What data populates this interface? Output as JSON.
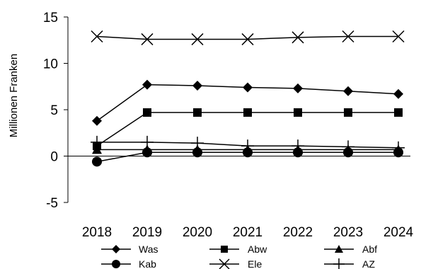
{
  "chart_data": {
    "type": "line",
    "title": "",
    "xlabel": "",
    "ylabel": "Millionen Franken",
    "ylim": [
      -5,
      15
    ],
    "yticks": [
      15,
      10,
      5,
      0,
      -5
    ],
    "categories": [
      "2018",
      "2019",
      "2020",
      "2021",
      "2022",
      "2023",
      "2024"
    ],
    "grid": false,
    "legend_position": "bottom",
    "series": [
      {
        "name": "Was",
        "marker": "diamond",
        "color": "#000000",
        "values": [
          3.8,
          7.7,
          7.6,
          7.4,
          7.3,
          7.0,
          6.7
        ]
      },
      {
        "name": "Abw",
        "marker": "square",
        "color": "#000000",
        "values": [
          1.1,
          4.7,
          4.7,
          4.7,
          4.7,
          4.7,
          4.7
        ]
      },
      {
        "name": "Abf",
        "marker": "triangle",
        "color": "#000000",
        "values": [
          0.7,
          0.7,
          0.7,
          0.7,
          0.7,
          0.7,
          0.7
        ]
      },
      {
        "name": "Kab",
        "marker": "circle",
        "color": "#000000",
        "values": [
          -0.6,
          0.4,
          0.4,
          0.4,
          0.4,
          0.4,
          0.4
        ]
      },
      {
        "name": "Ele",
        "marker": "x",
        "color": "#000000",
        "values": [
          12.9,
          12.6,
          12.6,
          12.6,
          12.8,
          12.9,
          12.9
        ]
      },
      {
        "name": "AZ",
        "marker": "plus",
        "color": "#000000",
        "values": [
          1.5,
          1.5,
          1.4,
          1.1,
          1.1,
          1.0,
          0.9
        ]
      }
    ]
  }
}
